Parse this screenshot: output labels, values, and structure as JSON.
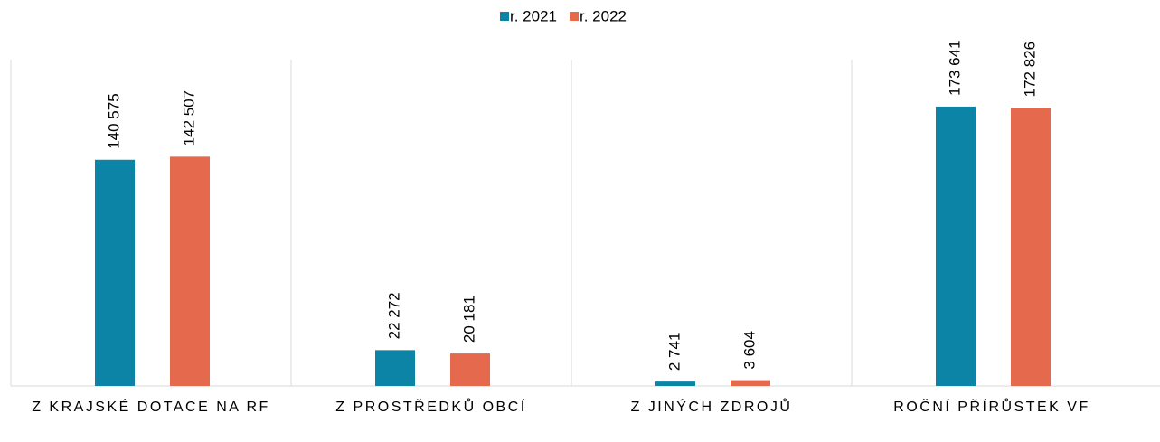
{
  "chart_data": {
    "type": "bar",
    "categories": [
      "Z KRAJSKÉ DOTACE NA RF",
      "Z PROSTŘEDKŮ OBCÍ",
      "Z JINÝCH ZDROJŮ",
      "ROČNÍ PŘÍRŮSTEK VF"
    ],
    "series": [
      {
        "name": "r. 2021",
        "color": "#0b84a5",
        "values": [
          140575,
          22272,
          2741,
          173641
        ],
        "value_labels": [
          "140 575",
          "22 272",
          "2 741",
          "173 641"
        ]
      },
      {
        "name": "r. 2022",
        "color": "#e5694c",
        "values": [
          142507,
          20181,
          3604,
          172826
        ],
        "value_labels": [
          "142 507",
          "20 181",
          "3 604",
          "172 826"
        ]
      }
    ],
    "ylim": [
      0,
      200000
    ],
    "legend": "top"
  }
}
